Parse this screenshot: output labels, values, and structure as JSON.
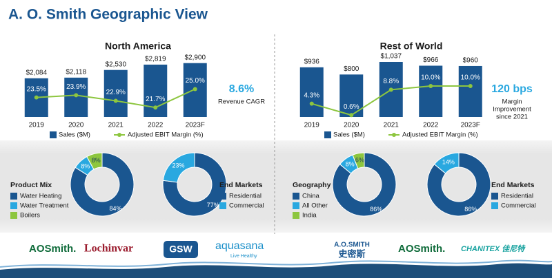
{
  "title": "A. O. Smith Geographic View",
  "logos": [
    "AOSmith.",
    "Lochinvar",
    "GSW",
    "aquasana",
    "Live Healthy",
    "A.O.SMITH",
    "史密斯",
    "AOSmith.",
    "CHANITEX 佳尼特"
  ],
  "chart_data": [
    {
      "type": "bar-line",
      "title": "North America",
      "categories": [
        "2019",
        "2020",
        "2021",
        "2022",
        "2023F"
      ],
      "series": [
        {
          "name": "Sales ($M)",
          "color": "#1a5690",
          "values": [
            2084,
            2118,
            2530,
            2819,
            2900
          ],
          "value_labels": [
            "$2,084",
            "$2,118",
            "$2,530",
            "$2,819",
            "$2,900"
          ]
        },
        {
          "name": "Adjusted EBIT Margin (%)",
          "color": "#8dc63f",
          "axis": "y2",
          "values": [
            23.5,
            23.9,
            22.9,
            21.7,
            25.0
          ],
          "value_labels": [
            "23.5%",
            "23.9%",
            "22.9%",
            "21.7%",
            "25.0%"
          ]
        }
      ],
      "ylim": [
        0,
        3000
      ],
      "y2lim": [
        20,
        30
      ],
      "annotation_value": "8.6%",
      "annotation_text": [
        "Revenue CAGR"
      ]
    },
    {
      "type": "bar-line",
      "title": "Rest of World",
      "categories": [
        "2019",
        "2020",
        "2021",
        "2022",
        "2023F"
      ],
      "series": [
        {
          "name": "Sales ($M)",
          "color": "#1a5690",
          "values": [
            936,
            800,
            1037,
            966,
            960
          ],
          "value_labels": [
            "$936",
            "$800",
            "$1,037",
            "$966",
            "$960"
          ]
        },
        {
          "name": "Adjusted EBIT Margin (%)",
          "color": "#8dc63f",
          "axis": "y2",
          "values": [
            4.3,
            0.6,
            8.8,
            10.0,
            10.0
          ],
          "value_labels": [
            "4.3%",
            "0.6%",
            "8.8%",
            "10.0%",
            "10.0%"
          ]
        }
      ],
      "ylim": [
        0,
        1050
      ],
      "y2lim": [
        0,
        18
      ],
      "annotation_value": "120 bps",
      "annotation_text": [
        "Margin",
        "Improvement",
        "since 2021"
      ]
    },
    {
      "type": "donut",
      "title": "Product Mix",
      "categories": [
        "Water Heating",
        "Water Treatment",
        "Boilers"
      ],
      "values": [
        84,
        8,
        8
      ],
      "value_labels": [
        "84%",
        "8%",
        "8%"
      ],
      "colors": [
        "#1a5690",
        "#29a8e0",
        "#8dc63f"
      ]
    },
    {
      "type": "donut",
      "title": "End Markets",
      "categories": [
        "Residential",
        "Commercial"
      ],
      "values": [
        77,
        23
      ],
      "value_labels": [
        "77%",
        "23%"
      ],
      "colors": [
        "#1a5690",
        "#29a8e0"
      ]
    },
    {
      "type": "donut",
      "title": "Geography",
      "categories": [
        "China",
        "All Other",
        "India"
      ],
      "values": [
        86,
        8,
        6
      ],
      "value_labels": [
        "86%",
        "8%",
        "6%"
      ],
      "colors": [
        "#1a5690",
        "#29a8e0",
        "#8dc63f"
      ]
    },
    {
      "type": "donut",
      "title": "End Markets",
      "categories": [
        "Residential",
        "Commercial"
      ],
      "values": [
        86,
        14
      ],
      "value_labels": [
        "86%",
        "14%"
      ],
      "colors": [
        "#1a5690",
        "#29a8e0"
      ]
    }
  ]
}
